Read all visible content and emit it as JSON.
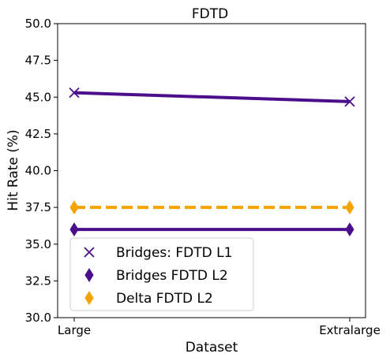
{
  "chart_data": {
    "type": "line",
    "title": "FDTD",
    "xlabel": "Dataset",
    "ylabel": "Hit Rate (%)",
    "categories": [
      "Large",
      "Extralarge"
    ],
    "ylim": [
      30.0,
      50.0
    ],
    "yticks": [
      "30.0",
      "32.5",
      "35.0",
      "37.5",
      "40.0",
      "42.5",
      "45.0",
      "47.5",
      "50.0"
    ],
    "grid": false,
    "legend_position": "lower-left",
    "series": [
      {
        "name": "Bridges: FDTD L1",
        "values": [
          45.3,
          44.7
        ],
        "color": "#4b0f8c",
        "marker": "x",
        "linestyle": "solid"
      },
      {
        "name": "Bridges FDTD L2",
        "values": [
          36.0,
          36.0
        ],
        "color": "#4b0f8c",
        "marker": "thin-diamond",
        "linestyle": "solid"
      },
      {
        "name": "Delta FDTD L2",
        "values": [
          37.5,
          37.5
        ],
        "color": "#f5a300",
        "marker": "thin-diamond",
        "linestyle": "dashed"
      }
    ]
  }
}
